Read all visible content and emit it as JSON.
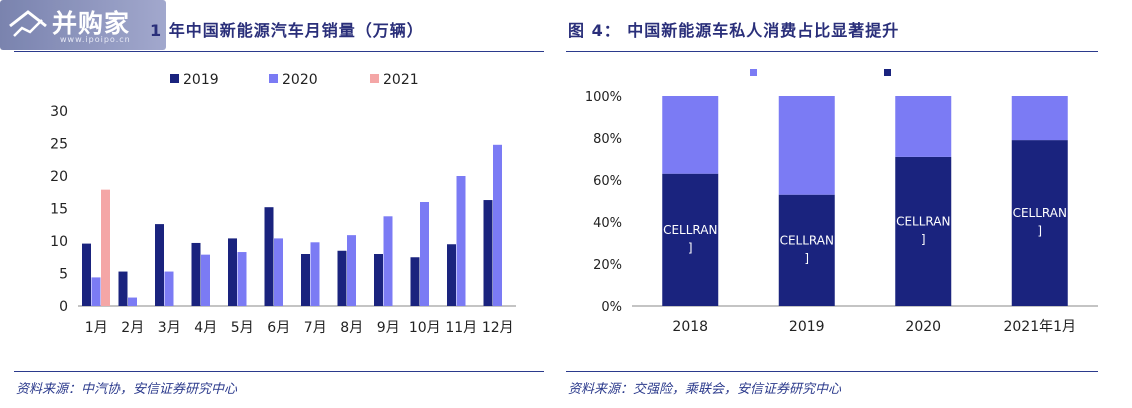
{
  "watermark": {
    "logo_text": "并购家",
    "url_text": "www.ipoipo.cn"
  },
  "left": {
    "title": "1 年中国新能源汽车月销量（万辆）",
    "source": "资料来源：中汽协，安信证券研究中心"
  },
  "right": {
    "title": "图 4： 中国新能源车私人消费占比显著提升",
    "source": "资料来源：交强险，乘联会，安信证券研究中心"
  },
  "chart_data": [
    {
      "type": "bar",
      "categories": [
        "1月",
        "2月",
        "3月",
        "4月",
        "5月",
        "6月",
        "7月",
        "8月",
        "9月",
        "10月",
        "11月",
        "12月"
      ],
      "series": [
        {
          "name": "2019",
          "color": "#1a237e",
          "values": [
            9.6,
            5.3,
            12.6,
            9.7,
            10.4,
            15.2,
            8.0,
            8.5,
            8.0,
            7.5,
            9.5,
            16.3
          ]
        },
        {
          "name": "2020",
          "color": "#7b7bf4",
          "values": [
            4.4,
            1.3,
            5.3,
            7.9,
            8.3,
            10.4,
            9.8,
            10.9,
            13.8,
            16.0,
            20.0,
            24.8
          ]
        },
        {
          "name": "2021",
          "color": "#f4a6a6",
          "values": [
            17.9,
            null,
            null,
            null,
            null,
            null,
            null,
            null,
            null,
            null,
            null,
            null
          ]
        }
      ],
      "ylim": [
        0,
        30
      ],
      "yticks": [
        "0",
        "5",
        "10",
        "15",
        "20",
        "25",
        "30"
      ],
      "legend": "top"
    },
    {
      "type": "bar",
      "stacked": true,
      "categories": [
        "2018",
        "2019",
        "2020",
        "2021年1月"
      ],
      "series": [
        {
          "name": "",
          "color": "#1a237e",
          "values": [
            63,
            53,
            71,
            79
          ]
        },
        {
          "name": "",
          "color": "#7b7bf4",
          "values": [
            37,
            47,
            29,
            21
          ]
        }
      ],
      "data_labels": [
        "CELLRAN\n]",
        "CELLRAN\n]",
        "CELLRAN\n]",
        "CELLRAN\n]"
      ],
      "ylim": [
        0,
        100
      ],
      "yticks": [
        "0%",
        "20%",
        "40%",
        "60%",
        "80%",
        "100%"
      ],
      "legend": "top"
    }
  ]
}
